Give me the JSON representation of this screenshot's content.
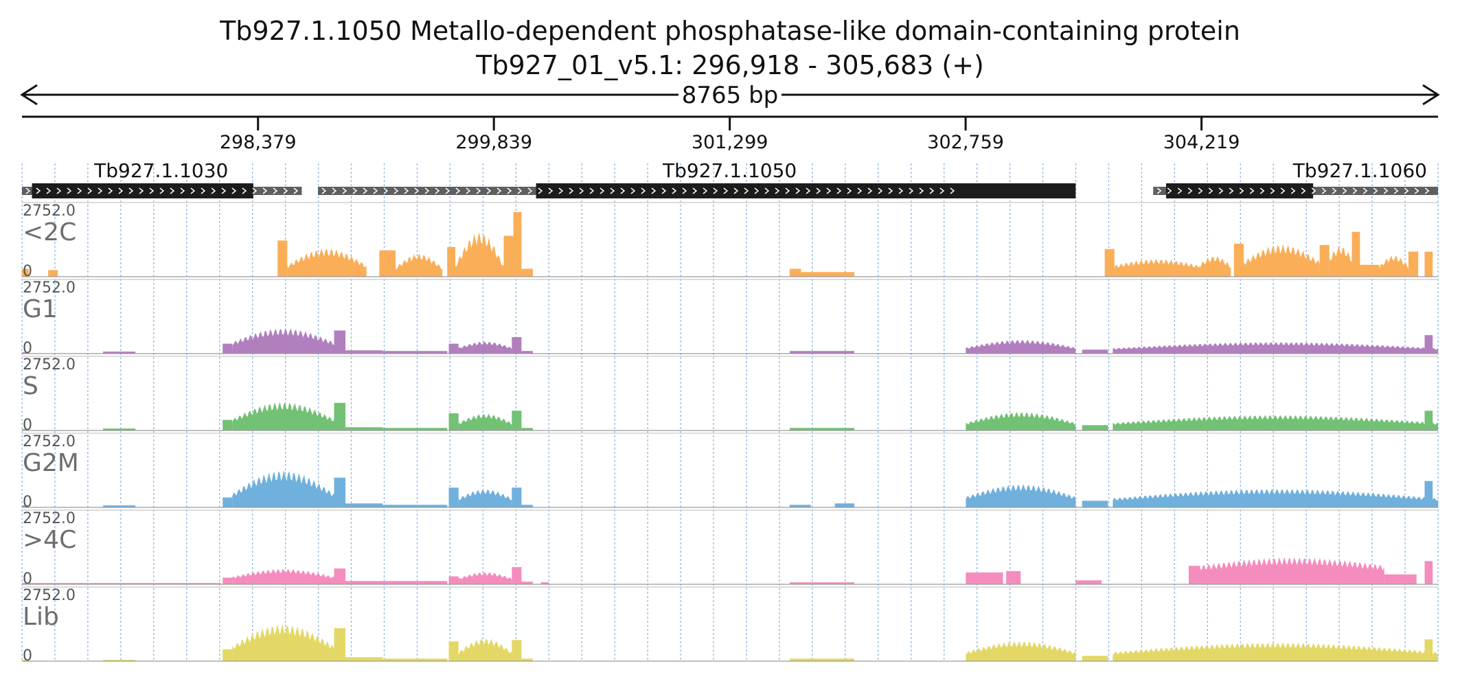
{
  "header": {
    "title": "Tb927.1.1050  Metallo-dependent phosphatase-like domain-containing protein",
    "subtitle": "Tb927_01_v5.1: 296,918 - 305,683 (+)",
    "span_label": "8765 bp"
  },
  "chart_data": {
    "type": "area",
    "title": "Tb927.1.1050  Metallo-dependent phosphatase-like domain-containing protein",
    "subtitle": "Tb927_01_v5.1: 296,918 - 305,683 (+)",
    "x_range": [
      296918,
      305683
    ],
    "x_ticks": [
      298379,
      299839,
      301299,
      302759,
      304219
    ],
    "x_tick_labels": [
      "298,379",
      "299,839",
      "301,299",
      "302,759",
      "304,219"
    ],
    "grid": true,
    "genes": [
      {
        "label": "Tb927.1.1030",
        "extent": [
          296918,
          298650
        ],
        "cds": [
          296980,
          298350
        ],
        "label_pos": 297780
      },
      {
        "label": "Tb927.1.1050",
        "extent": [
          298750,
          302750
        ],
        "cds": [
          300100,
          303440
        ],
        "label_pos": 301299
      },
      {
        "label": "Tb927.1.1060",
        "extent": [
          303920,
          305683
        ],
        "cds": [
          304000,
          304910
        ],
        "label_pos": 305200
      }
    ],
    "tracks": [
      {
        "name": "<2C",
        "max_label": "2752.0",
        "min_label": "0",
        "color": "#f9ae57",
        "segments": [
          {
            "range": [
              296918,
              296960
            ],
            "level": 0.12
          },
          {
            "range": [
              297080,
              297140
            ],
            "level": 0.1
          },
          {
            "range": [
              298500,
              298560
            ],
            "level": 0.55
          },
          {
            "range": [
              298560,
              299050
            ],
            "level": 0.15,
            "hump": 0.22
          },
          {
            "range": [
              299130,
              299230
            ],
            "level": 0.4
          },
          {
            "range": [
              299230,
              299520
            ],
            "level": 0.12,
            "hump": 0.18
          },
          {
            "range": [
              299550,
              299600
            ],
            "level": 0.45
          },
          {
            "range": [
              299600,
              299900
            ],
            "level": 0.15,
            "hump": 0.43
          },
          {
            "range": [
              299900,
              299960
            ],
            "level": 0.62
          },
          {
            "range": [
              299960,
              300010
            ],
            "level": 0.98
          },
          {
            "range": [
              300010,
              300080
            ],
            "level": 0.12
          },
          {
            "range": [
              301670,
              301740
            ],
            "level": 0.12
          },
          {
            "range": [
              301740,
              302070
            ],
            "level": 0.07
          },
          {
            "range": [
              303620,
              303680
            ],
            "level": 0.42
          },
          {
            "range": [
              303680,
              304200
            ],
            "level": 0.15,
            "hump": 0.08
          },
          {
            "range": [
              304200,
              304400
            ],
            "level": 0.15,
            "hump": 0.12
          },
          {
            "range": [
              304420,
              304480
            ],
            "level": 0.5
          },
          {
            "range": [
              304480,
              304950
            ],
            "level": 0.2,
            "hump": 0.22
          },
          {
            "range": [
              304950,
              305010
            ],
            "level": 0.48
          },
          {
            "range": [
              305010,
              305150
            ],
            "level": 0.25,
            "hump": 0.15
          },
          {
            "range": [
              305150,
              305200
            ],
            "level": 0.68
          },
          {
            "range": [
              305200,
              305320
            ],
            "level": 0.18
          },
          {
            "range": [
              305320,
              305500
            ],
            "level": 0.14,
            "hump": 0.14
          },
          {
            "range": [
              305500,
              305560
            ],
            "level": 0.38
          },
          {
            "range": [
              305600,
              305650
            ],
            "level": 0.38
          }
        ]
      },
      {
        "name": "G1",
        "max_label": "2752.0",
        "min_label": "0",
        "color": "#b17fbe",
        "segments": [
          {
            "range": [
              296918,
              296960
            ],
            "level": 0.02
          },
          {
            "range": [
              297420,
              297620
            ],
            "level": 0.03
          },
          {
            "range": [
              298160,
              298220
            ],
            "level": 0.15
          },
          {
            "range": [
              298220,
              298850
            ],
            "level": 0.15,
            "hump": 0.18
          },
          {
            "range": [
              298850,
              298920
            ],
            "level": 0.35
          },
          {
            "range": [
              298920,
              299150
            ],
            "level": 0.05
          },
          {
            "range": [
              299150,
              299550
            ],
            "level": 0.04
          },
          {
            "range": [
              299560,
              299620
            ],
            "level": 0.15
          },
          {
            "range": [
              299620,
              299950
            ],
            "level": 0.08,
            "hump": 0.08
          },
          {
            "range": [
              299950,
              300010
            ],
            "level": 0.25
          },
          {
            "range": [
              300010,
              300080
            ],
            "level": 0.04
          },
          {
            "range": [
              301670,
              302070
            ],
            "level": 0.04
          },
          {
            "range": [
              302760,
              303440
            ],
            "level": 0.08,
            "hump": 0.1
          },
          {
            "range": [
              303480,
              303640
            ],
            "level": 0.06
          },
          {
            "range": [
              303670,
              305683
            ],
            "level": 0.07,
            "hump": 0.08
          },
          {
            "range": [
              305600,
              305650
            ],
            "level": 0.28
          }
        ]
      },
      {
        "name": "S",
        "max_label": "2752.0",
        "min_label": "0",
        "color": "#72c174",
        "segments": [
          {
            "range": [
              296918,
              296960
            ],
            "level": 0.02
          },
          {
            "range": [
              297420,
              297620
            ],
            "level": 0.03
          },
          {
            "range": [
              298160,
              298220
            ],
            "level": 0.16
          },
          {
            "range": [
              298220,
              298850
            ],
            "level": 0.15,
            "hump": 0.22
          },
          {
            "range": [
              298850,
              298920
            ],
            "level": 0.42
          },
          {
            "range": [
              298920,
              299150
            ],
            "level": 0.05
          },
          {
            "range": [
              299150,
              299550
            ],
            "level": 0.04
          },
          {
            "range": [
              299560,
              299620
            ],
            "level": 0.26
          },
          {
            "range": [
              299620,
              299950
            ],
            "level": 0.1,
            "hump": 0.12
          },
          {
            "range": [
              299950,
              300010
            ],
            "level": 0.3
          },
          {
            "range": [
              300010,
              300080
            ],
            "level": 0.04
          },
          {
            "range": [
              301670,
              302070
            ],
            "level": 0.04
          },
          {
            "range": [
              302760,
              303440
            ],
            "level": 0.1,
            "hump": 0.14
          },
          {
            "range": [
              303480,
              303640
            ],
            "level": 0.08
          },
          {
            "range": [
              303670,
              305683
            ],
            "level": 0.1,
            "hump": 0.1
          },
          {
            "range": [
              305600,
              305650
            ],
            "level": 0.3
          }
        ]
      },
      {
        "name": "G2M",
        "max_label": "2752.0",
        "min_label": "0",
        "color": "#6fb0dd",
        "segments": [
          {
            "range": [
              296918,
              296960
            ],
            "level": 0.03
          },
          {
            "range": [
              297420,
              297620
            ],
            "level": 0.03
          },
          {
            "range": [
              298160,
              298220
            ],
            "level": 0.15
          },
          {
            "range": [
              298220,
              298850
            ],
            "level": 0.18,
            "hump": 0.3
          },
          {
            "range": [
              298850,
              298920
            ],
            "level": 0.45
          },
          {
            "range": [
              298920,
              299150
            ],
            "level": 0.06
          },
          {
            "range": [
              299150,
              299550
            ],
            "level": 0.04
          },
          {
            "range": [
              299560,
              299620
            ],
            "level": 0.3
          },
          {
            "range": [
              299620,
              299950
            ],
            "level": 0.12,
            "hump": 0.12
          },
          {
            "range": [
              299950,
              300010
            ],
            "level": 0.3
          },
          {
            "range": [
              300010,
              300080
            ],
            "level": 0.04
          },
          {
            "range": [
              301670,
              301800
            ],
            "level": 0.04
          },
          {
            "range": [
              301950,
              302070
            ],
            "level": 0.06
          },
          {
            "range": [
              302760,
              303440
            ],
            "level": 0.14,
            "hump": 0.16
          },
          {
            "range": [
              303480,
              303640
            ],
            "level": 0.1
          },
          {
            "range": [
              303670,
              305683
            ],
            "level": 0.12,
            "hump": 0.12
          },
          {
            "range": [
              305600,
              305650
            ],
            "level": 0.4
          }
        ]
      },
      {
        "name": ">4C",
        "max_label": "2752.0",
        "min_label": "0",
        "color": "#f48cbe",
        "segments": [
          {
            "range": [
              296918,
              296960
            ],
            "level": 0.02
          },
          {
            "range": [
              296960,
              298150
            ],
            "level": 0.02
          },
          {
            "range": [
              298160,
              298220
            ],
            "level": 0.1
          },
          {
            "range": [
              298220,
              298850
            ],
            "level": 0.1,
            "hump": 0.1
          },
          {
            "range": [
              298850,
              298920
            ],
            "level": 0.24
          },
          {
            "range": [
              298920,
              299550
            ],
            "level": 0.05
          },
          {
            "range": [
              299560,
              299620
            ],
            "level": 0.12
          },
          {
            "range": [
              299620,
              299950
            ],
            "level": 0.08,
            "hump": 0.08
          },
          {
            "range": [
              299950,
              300010
            ],
            "level": 0.26
          },
          {
            "range": [
              300010,
              300080
            ],
            "level": 0.04
          },
          {
            "range": [
              300130,
              300180
            ],
            "level": 0.03
          },
          {
            "range": [
              301670,
              302070
            ],
            "level": 0.03
          },
          {
            "range": [
              302760,
              302990
            ],
            "level": 0.18
          },
          {
            "range": [
              303010,
              303100
            ],
            "level": 0.2
          },
          {
            "range": [
              303440,
              303600
            ],
            "level": 0.06
          },
          {
            "range": [
              304140,
              304210
            ],
            "level": 0.28
          },
          {
            "range": [
              304210,
              305350
            ],
            "level": 0.25,
            "hump": 0.1
          },
          {
            "range": [
              305350,
              305550
            ],
            "level": 0.15
          },
          {
            "range": [
              305600,
              305650
            ],
            "level": 0.35
          }
        ]
      },
      {
        "name": "Lib",
        "max_label": "2752.0",
        "min_label": "0",
        "color": "#e3d866",
        "segments": [
          {
            "range": [
              296918,
              296960
            ],
            "level": 0.02
          },
          {
            "range": [
              297420,
              297620
            ],
            "level": 0.02
          },
          {
            "range": [
              298160,
              298220
            ],
            "level": 0.18
          },
          {
            "range": [
              298220,
              298850
            ],
            "level": 0.2,
            "hump": 0.28
          },
          {
            "range": [
              298850,
              298920
            ],
            "level": 0.5
          },
          {
            "range": [
              298920,
              299150
            ],
            "level": 0.06
          },
          {
            "range": [
              299150,
              299550
            ],
            "level": 0.04
          },
          {
            "range": [
              299560,
              299620
            ],
            "level": 0.3
          },
          {
            "range": [
              299620,
              299950
            ],
            "level": 0.12,
            "hump": 0.18
          },
          {
            "range": [
              299950,
              300010
            ],
            "level": 0.32
          },
          {
            "range": [
              300010,
              300080
            ],
            "level": 0.04
          },
          {
            "range": [
              301670,
              302070
            ],
            "level": 0.04
          },
          {
            "range": [
              302760,
              303440
            ],
            "level": 0.12,
            "hump": 0.14
          },
          {
            "range": [
              303480,
              303640
            ],
            "level": 0.08
          },
          {
            "range": [
              303670,
              305683
            ],
            "level": 0.12,
            "hump": 0.12
          },
          {
            "range": [
              305600,
              305650
            ],
            "level": 0.33
          }
        ]
      }
    ]
  }
}
